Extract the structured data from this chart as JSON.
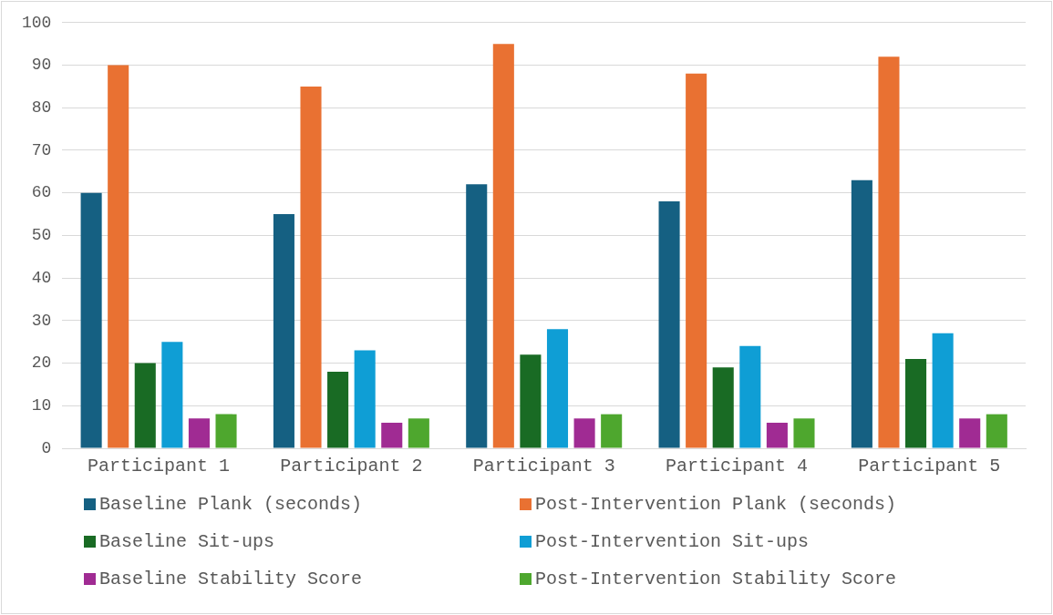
{
  "chart_data": {
    "type": "bar",
    "categories": [
      "Participant 1",
      "Participant 2",
      "Participant 3",
      "Participant 4",
      "Participant 5"
    ],
    "series": [
      {
        "name": "Baseline Plank (seconds)",
        "color": "#156082",
        "values": [
          60,
          55,
          62,
          58,
          63
        ]
      },
      {
        "name": "Post-Intervention Plank (seconds)",
        "color": "#e97132",
        "values": [
          90,
          85,
          95,
          88,
          92
        ]
      },
      {
        "name": "Baseline Sit-ups",
        "color": "#196b24",
        "values": [
          20,
          18,
          22,
          19,
          21
        ]
      },
      {
        "name": "Post-Intervention Sit-ups",
        "color": "#0f9ed5",
        "values": [
          25,
          23,
          28,
          24,
          27
        ]
      },
      {
        "name": "Baseline Stability Score",
        "color": "#a02b93",
        "values": [
          7,
          6,
          7,
          6,
          7
        ]
      },
      {
        "name": "Post-Intervention Stability Score",
        "color": "#4ea72e",
        "values": [
          8,
          7,
          8,
          7,
          8
        ]
      }
    ],
    "ylim": [
      0,
      100
    ],
    "yticks": [
      0,
      10,
      20,
      30,
      40,
      50,
      60,
      70,
      80,
      90,
      100
    ],
    "grid": "y",
    "legend": "bottom"
  }
}
